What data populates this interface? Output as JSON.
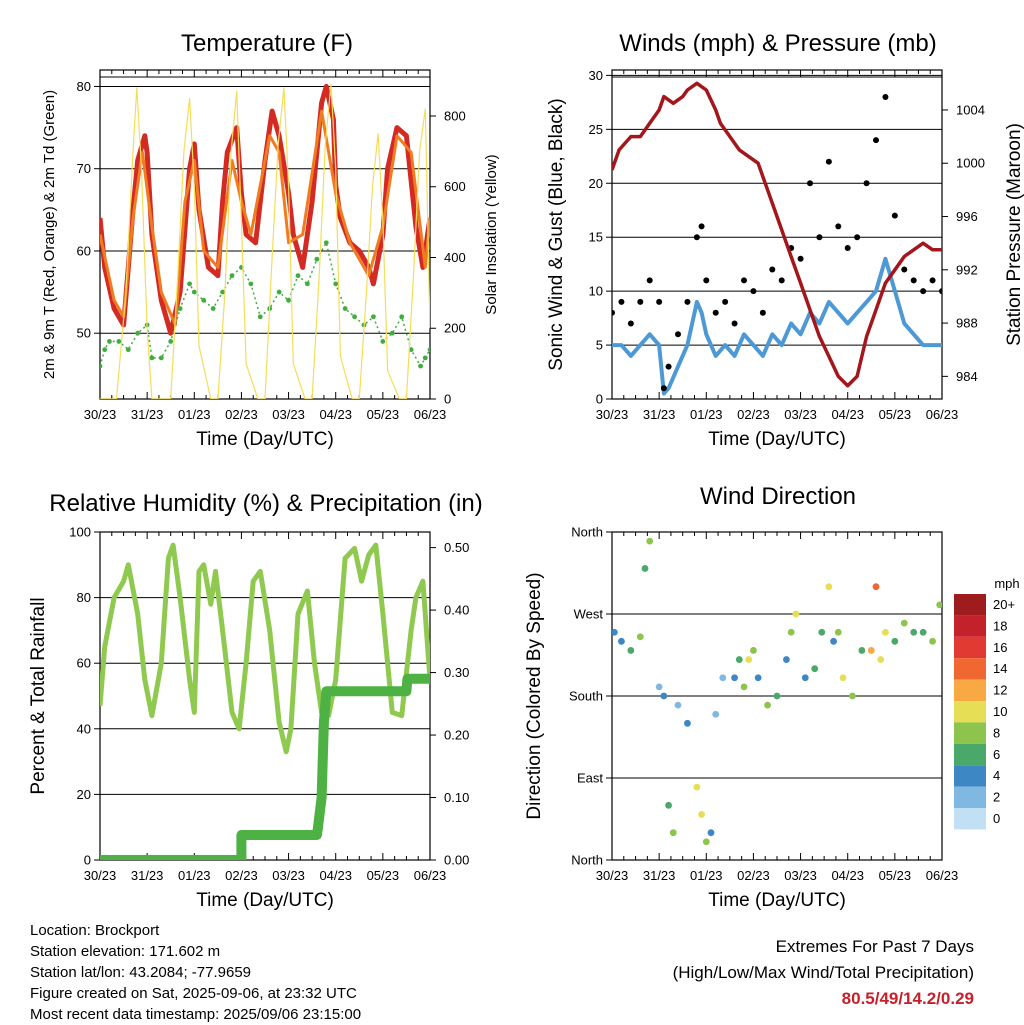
{
  "info": {
    "location": "Location: Brockport",
    "elevation": "Station elevation: 171.602 m",
    "latlon": "Station lat/lon: 43.2084; -77.9659",
    "created": "Figure created on Sat, 2025-09-06, at 23:32 UTC",
    "recent": "Most recent data timestamp: 2025/09/06 23:15:00"
  },
  "extremes": {
    "line1": "Extremes For Past 7 Days",
    "line2": "(High/Low/Max Wind/Total Precipitation)",
    "values": "80.5/49/14.2/0.29"
  },
  "colors": {
    "temp_2m": "#d42a24",
    "temp_9m": "#f07c22",
    "dewpoint": "#41ad3e",
    "solar": "#f5dd5a",
    "wind": "#4d99d6",
    "gust": "#000000",
    "pressure": "#a3171c",
    "rh": "#8fc94f",
    "rain": "#4db243"
  },
  "chart_data": [
    {
      "type": "line",
      "title": "Temperature (F)",
      "xlabel": "Time (Day/UTC)",
      "ylabel": "2m & 9m T (Red, Orange) & 2m Td (Green)",
      "ylabel_right": "Solar Insolation (Yellow)",
      "x_ticks": [
        "30/23",
        "31/23",
        "01/23",
        "02/23",
        "03/23",
        "04/23",
        "05/23",
        "06/23"
      ],
      "ylim": [
        42,
        82
      ],
      "y_ticks": [
        50,
        60,
        70,
        80
      ],
      "ylim_right": [
        0,
        930
      ],
      "y_ticks_right": [
        0,
        200,
        400,
        600,
        800
      ],
      "grid": "horizontal",
      "series": [
        {
          "key": "temp_2m",
          "x": [
            0,
            0.1,
            0.3,
            0.5,
            0.7,
            0.8,
            0.95,
            1.0,
            1.1,
            1.3,
            1.5,
            1.7,
            1.9,
            2.0,
            2.1,
            2.3,
            2.5,
            2.6,
            2.7,
            2.9,
            3.0,
            3.1,
            3.3,
            3.5,
            3.65,
            3.8,
            4.0,
            4.1,
            4.3,
            4.5,
            4.7,
            4.8,
            4.95,
            5.0,
            5.1,
            5.3,
            5.5,
            5.7,
            5.8,
            6.0,
            6.1,
            6.3,
            6.5,
            6.7,
            6.85,
            7.0
          ],
          "y": [
            64,
            58,
            53,
            51,
            65,
            71,
            74,
            72,
            62,
            54,
            50,
            55,
            70,
            73,
            65,
            58,
            57,
            66,
            72,
            75,
            67,
            62,
            61,
            71,
            77,
            74,
            67,
            62,
            58,
            66,
            78,
            80,
            76,
            68,
            64,
            61,
            60,
            58,
            56,
            62,
            70,
            75,
            74,
            63,
            58,
            64
          ]
        },
        {
          "key": "temp_9m",
          "x": [
            0,
            0.3,
            0.5,
            0.7,
            0.9,
            1.1,
            1.3,
            1.6,
            1.8,
            2.0,
            2.2,
            2.5,
            2.8,
            3.0,
            3.2,
            3.6,
            3.8,
            4.0,
            4.3,
            4.7,
            5.0,
            5.3,
            5.7,
            6.0,
            6.3,
            6.6,
            6.9,
            7.0
          ],
          "y": [
            62,
            54,
            52,
            64,
            72,
            63,
            55,
            51,
            66,
            71,
            60,
            58,
            71,
            66,
            62,
            74,
            72,
            61,
            62,
            77,
            67,
            61,
            57,
            63,
            74,
            72,
            58,
            64
          ]
        },
        {
          "key": "dewpoint",
          "x": [
            0,
            0.1,
            0.2,
            0.4,
            0.6,
            0.8,
            1.0,
            1.1,
            1.3,
            1.5,
            1.7,
            1.9,
            2.0,
            2.2,
            2.4,
            2.6,
            2.8,
            3.0,
            3.2,
            3.4,
            3.6,
            3.8,
            4.0,
            4.2,
            4.4,
            4.6,
            4.8,
            5.0,
            5.2,
            5.4,
            5.6,
            5.8,
            6.0,
            6.2,
            6.4,
            6.6,
            6.8,
            6.9,
            7.0
          ],
          "y": [
            46,
            48,
            49,
            49,
            48,
            50,
            51,
            47,
            47,
            49,
            53,
            56,
            55,
            54,
            53,
            55,
            57,
            58,
            56,
            52,
            53,
            55,
            54,
            57,
            56,
            59,
            61,
            56,
            53,
            52,
            51,
            52,
            49,
            50,
            52,
            48,
            46,
            47,
            48
          ]
        },
        {
          "key": "solar",
          "x": [
            0,
            0.12,
            0.35,
            0.55,
            0.7,
            0.78,
            0.88,
            1.0,
            1.1,
            1.35,
            1.5,
            1.65,
            1.78,
            1.9,
            2.0,
            2.1,
            2.35,
            2.5,
            2.65,
            2.78,
            2.9,
            3.0,
            3.1,
            3.35,
            3.5,
            3.65,
            3.78,
            3.9,
            4.0,
            4.1,
            4.35,
            4.5,
            4.65,
            4.78,
            4.9,
            5.0,
            5.1,
            5.35,
            5.5,
            5.65,
            5.78,
            5.9,
            6.0,
            6.1,
            6.35,
            6.5,
            6.65,
            6.78,
            6.9,
            7.0
          ],
          "y": [
            0,
            0,
            0,
            300,
            700,
            880,
            650,
            200,
            0,
            0,
            0,
            350,
            700,
            850,
            600,
            150,
            0,
            0,
            300,
            700,
            870,
            500,
            100,
            0,
            0,
            400,
            720,
            880,
            600,
            100,
            0,
            0,
            350,
            720,
            890,
            650,
            120,
            0,
            0,
            300,
            600,
            750,
            500,
            80,
            0,
            0,
            350,
            700,
            820,
            200
          ]
        }
      ]
    },
    {
      "type": "scatter",
      "title": "Winds (mph) & Pressure (mb)",
      "xlabel": "Time (Day/UTC)",
      "ylabel": "Sonic Wind & Gust (Blue, Black)",
      "ylabel_right": "Station Pressure (Maroon)",
      "x_ticks": [
        "30/23",
        "31/23",
        "01/23",
        "02/23",
        "03/23",
        "04/23",
        "05/23",
        "06/23"
      ],
      "ylim": [
        0,
        30.5
      ],
      "y_ticks": [
        0,
        5,
        10,
        15,
        20,
        25,
        30
      ],
      "ylim_right": [
        982.3,
        1007
      ],
      "y_ticks_right": [
        984,
        988,
        992,
        996,
        1000,
        1004
      ],
      "grid": "horizontal",
      "series": [
        {
          "key": "wind",
          "x": [
            0,
            0.2,
            0.4,
            0.6,
            0.8,
            1.0,
            1.1,
            1.2,
            1.4,
            1.6,
            1.8,
            1.9,
            2.0,
            2.2,
            2.4,
            2.6,
            2.8,
            3.0,
            3.2,
            3.4,
            3.6,
            3.8,
            4.0,
            4.2,
            4.4,
            4.6,
            4.8,
            5.0,
            5.2,
            5.4,
            5.6,
            5.8,
            6.0,
            6.2,
            6.4,
            6.6,
            6.8,
            7.0
          ],
          "y": [
            5,
            5,
            4,
            5,
            6,
            5,
            0.5,
            1,
            3,
            5,
            9,
            8,
            6,
            4,
            5,
            4,
            6,
            5,
            4,
            6,
            5,
            7,
            6,
            8,
            7,
            9,
            8,
            7,
            8,
            9,
            10,
            13,
            10,
            7,
            6,
            5,
            5,
            5
          ]
        },
        {
          "key": "gust",
          "x": [
            0,
            0.2,
            0.4,
            0.6,
            0.8,
            1.0,
            1.1,
            1.2,
            1.4,
            1.6,
            1.8,
            1.9,
            2.0,
            2.2,
            2.4,
            2.6,
            2.8,
            3.0,
            3.2,
            3.4,
            3.6,
            3.8,
            4.0,
            4.2,
            4.4,
            4.6,
            4.8,
            5.0,
            5.2,
            5.4,
            5.6,
            5.8,
            6.0,
            6.2,
            6.4,
            6.6,
            6.8,
            7.0
          ],
          "y": [
            8,
            9,
            7,
            9,
            11,
            9,
            1,
            3,
            6,
            9,
            15,
            16,
            11,
            8,
            9,
            7,
            11,
            10,
            8,
            12,
            11,
            14,
            13,
            20,
            15,
            22,
            16,
            14,
            15,
            20,
            24,
            28,
            17,
            12,
            11,
            10,
            11,
            10
          ]
        },
        {
          "key": "pressure",
          "x": [
            0,
            0.15,
            0.4,
            0.6,
            0.8,
            1.0,
            1.1,
            1.3,
            1.5,
            1.6,
            1.8,
            2.0,
            2.2,
            2.3,
            2.5,
            2.7,
            2.9,
            3.1,
            3.3,
            3.5,
            3.7,
            3.8,
            4.0,
            4.2,
            4.4,
            4.6,
            4.8,
            5.0,
            5.2,
            5.4,
            5.6,
            5.8,
            6.0,
            6.2,
            6.4,
            6.6,
            6.8,
            7.0
          ],
          "y": [
            999.5,
            1001,
            1002,
            1002,
            1003,
            1004,
            1005,
            1004.5,
            1005,
            1005.5,
            1006,
            1005.5,
            1004,
            1003,
            1002,
            1001,
            1000.5,
            1000,
            998,
            996,
            994,
            993,
            991,
            989,
            987,
            985.5,
            984,
            983.3,
            984,
            987,
            989,
            991,
            992,
            993,
            993.5,
            994,
            993.5,
            993.5
          ]
        }
      ]
    },
    {
      "type": "line",
      "title": "Relative Humidity (%) & Precipitation (in)",
      "xlabel": "Time (Day/UTC)",
      "ylabel": "Percent & Total Rainfall",
      "x_ticks": [
        "30/23",
        "31/23",
        "01/23",
        "02/23",
        "03/23",
        "04/23",
        "05/23",
        "06/23"
      ],
      "ylim": [
        0,
        100
      ],
      "y_ticks": [
        0,
        20,
        40,
        60,
        80,
        100
      ],
      "ylim_right": [
        0,
        0.525
      ],
      "y_ticks_right": [
        "0.00",
        "0.10",
        "0.20",
        "0.30",
        "0.40",
        "0.50"
      ],
      "grid": "horizontal",
      "series": [
        {
          "key": "rh",
          "x": [
            0,
            0.1,
            0.3,
            0.5,
            0.6,
            0.8,
            0.95,
            1.1,
            1.3,
            1.45,
            1.55,
            1.7,
            1.9,
            2.0,
            2.1,
            2.2,
            2.35,
            2.45,
            2.6,
            2.8,
            2.95,
            3.1,
            3.25,
            3.4,
            3.6,
            3.8,
            3.95,
            4.05,
            4.2,
            4.4,
            4.55,
            4.7,
            4.85,
            5.0,
            5.2,
            5.4,
            5.55,
            5.7,
            5.85,
            6.0,
            6.2,
            6.4,
            6.6,
            6.7,
            6.85,
            7.0
          ],
          "y": [
            47,
            65,
            80,
            85,
            90,
            75,
            55,
            44,
            60,
            92,
            96,
            80,
            55,
            45,
            88,
            90,
            78,
            88,
            70,
            45,
            40,
            60,
            85,
            88,
            70,
            42,
            33,
            40,
            75,
            82,
            60,
            45,
            44,
            55,
            92,
            95,
            85,
            93,
            96,
            75,
            45,
            44,
            70,
            80,
            85,
            55
          ]
        },
        {
          "key": "rain",
          "x": [
            0,
            3.0,
            3.0,
            4.6,
            4.62,
            4.7,
            4.75,
            4.8,
            6.5,
            6.52,
            7.0
          ],
          "y": [
            0,
            0,
            0.04,
            0.04,
            0.05,
            0.1,
            0.22,
            0.27,
            0.27,
            0.29,
            0.29
          ]
        }
      ]
    },
    {
      "type": "scatter",
      "title": "Wind Direction",
      "xlabel": "Time (Day/UTC)",
      "ylabel": "Direction (Colored By Speed)",
      "x_ticks": [
        "30/23",
        "31/23",
        "01/23",
        "02/23",
        "03/23",
        "04/23",
        "05/23",
        "06/23"
      ],
      "y_ticks": [
        "North",
        "East",
        "South",
        "West",
        "North"
      ],
      "ylim": [
        0,
        360
      ],
      "grid": "horizontal",
      "colorbar": {
        "title": "mph",
        "labels": [
          "20+",
          "18",
          "16",
          "14",
          "12",
          "10",
          "8",
          "6",
          "4",
          "2",
          "0"
        ],
        "colors": [
          "#9e1b1e",
          "#c3222b",
          "#e03a33",
          "#f16732",
          "#f9a943",
          "#e6df56",
          "#8dc44c",
          "#4aa86a",
          "#3d87c4",
          "#7fb8e1",
          "#c1e0f4"
        ]
      },
      "series": [
        {
          "key": "direction",
          "x": [
            0.05,
            0.2,
            0.4,
            0.6,
            0.7,
            0.8,
            1.0,
            1.1,
            1.2,
            1.3,
            1.4,
            1.6,
            1.8,
            1.9,
            2.0,
            2.1,
            2.2,
            2.35,
            2.6,
            2.7,
            2.8,
            2.9,
            3.0,
            3.1,
            3.3,
            3.5,
            3.7,
            3.8,
            3.9,
            4.1,
            4.3,
            4.45,
            4.6,
            4.7,
            4.8,
            4.9,
            5.1,
            5.3,
            5.5,
            5.6,
            5.7,
            5.8,
            6.0,
            6.2,
            6.4,
            6.6,
            6.8,
            6.95
          ],
          "y": [
            250,
            240,
            230,
            245,
            320,
            350,
            190,
            180,
            60,
            30,
            170,
            150,
            80,
            50,
            20,
            30,
            160,
            200,
            200,
            220,
            190,
            220,
            230,
            200,
            170,
            180,
            220,
            250,
            270,
            200,
            210,
            250,
            300,
            240,
            250,
            200,
            180,
            230,
            230,
            300,
            220,
            250,
            240,
            260,
            250,
            250,
            240,
            280
          ],
          "speed": [
            4,
            3,
            5,
            8,
            6,
            7,
            2,
            4,
            6,
            7,
            2,
            3,
            9,
            10,
            8,
            4,
            2,
            1,
            4,
            6,
            8,
            9,
            7,
            3,
            8,
            5,
            4,
            8,
            10,
            4,
            6,
            6,
            10,
            4,
            7,
            9,
            8,
            6,
            12,
            14,
            10,
            9,
            5,
            7,
            6,
            6,
            7,
            8
          ]
        }
      ]
    }
  ]
}
